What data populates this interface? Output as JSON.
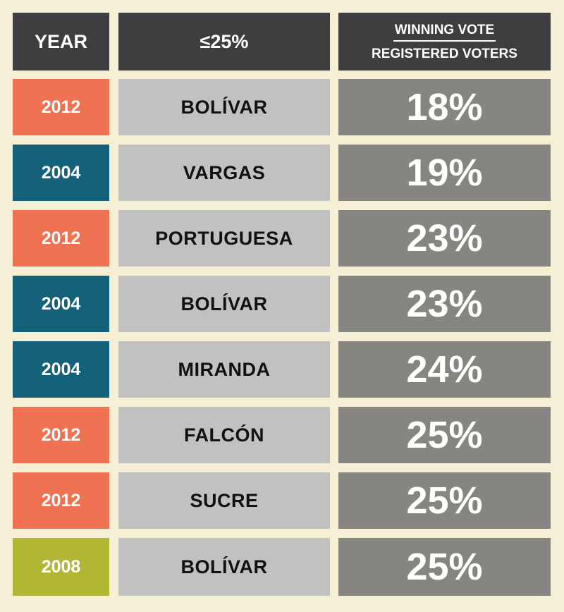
{
  "table": {
    "header": [
      "YEAR",
      "≤25%",
      {
        "numerator": "WINNING VOTE",
        "denominator": "REGISTERED VOTERS"
      }
    ],
    "rows": [
      [
        "2012",
        "BOLÍVAR",
        "18%"
      ],
      [
        "2004",
        "VARGAS",
        "19%"
      ],
      [
        "2012",
        "PORTUGUESA",
        "23%"
      ],
      [
        "2004",
        "BOLÍVAR",
        "23%"
      ],
      [
        "2004",
        "MIRANDA",
        "24%"
      ],
      [
        "2012",
        "FALCÓN",
        "25%"
      ],
      [
        "2012",
        "SUCRE",
        "25%"
      ],
      [
        "2008",
        "BOLÍVAR",
        "25%"
      ]
    ],
    "year_colors": [
      "#ef7252",
      "#14617a",
      "#ef7252",
      "#14617a",
      "#14617a",
      "#ef7252",
      "#ef7252",
      "#b1b634"
    ]
  }
}
